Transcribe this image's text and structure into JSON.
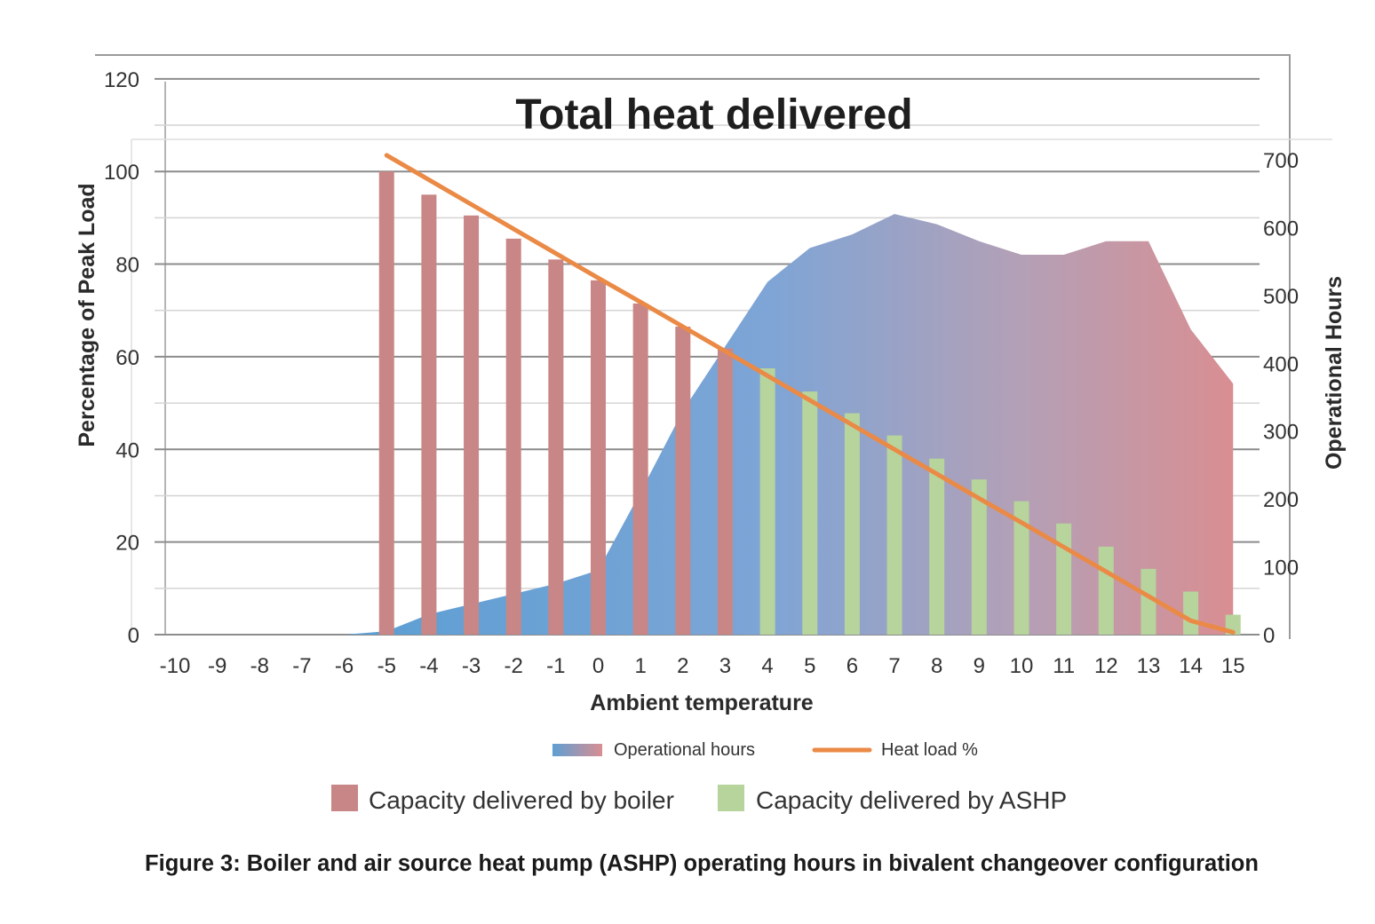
{
  "chart_data": {
    "type": "bar",
    "title": "Total heat delivered",
    "xlabel": "Ambient temperature",
    "ylabel": "Percentage of Peak Load",
    "y2label": "Operational Hours",
    "categories": [
      "-10",
      "-9",
      "-8",
      "-7",
      "-6",
      "-5",
      "-4",
      "-3",
      "-2",
      "-1",
      "0",
      "1",
      "2",
      "3",
      "4",
      "5",
      "6",
      "7",
      "8",
      "9",
      "10",
      "11",
      "12",
      "13",
      "14",
      "15"
    ],
    "ylim": [
      0,
      120
    ],
    "yticks": [
      0,
      20,
      40,
      60,
      80,
      100,
      120
    ],
    "y2lim": [
      0,
      700
    ],
    "y2ticks": [
      0,
      100,
      200,
      300,
      400,
      500,
      600,
      700
    ],
    "grid": true,
    "series": [
      {
        "name": "Capacity delivered by boiler",
        "type": "bar",
        "axis": "left",
        "color": "#c98686",
        "values": [
          null,
          null,
          null,
          null,
          null,
          100,
          95,
          90.5,
          85.5,
          81,
          76.5,
          71.5,
          66.5,
          61.8,
          null,
          null,
          null,
          null,
          null,
          null,
          null,
          null,
          null,
          null,
          null,
          null
        ]
      },
      {
        "name": "Capacity delivered by ASHP",
        "type": "bar",
        "axis": "left",
        "color": "#b7d49c",
        "values": [
          null,
          null,
          null,
          null,
          null,
          null,
          null,
          null,
          null,
          null,
          null,
          null,
          null,
          null,
          57.5,
          52.5,
          47.8,
          43,
          38,
          33.5,
          28.8,
          24,
          19,
          14.2,
          9.3,
          4.3
        ]
      },
      {
        "name": "Heat load %",
        "type": "line",
        "axis": "left",
        "color": "#ea8a46",
        "values": [
          null,
          null,
          null,
          null,
          null,
          103.5,
          98.2,
          92.9,
          87.6,
          82.3,
          77,
          71.8,
          66.5,
          61.2,
          55.9,
          50.6,
          45.3,
          40,
          34.7,
          29.4,
          24.2,
          18.9,
          13.6,
          8.3,
          3,
          0.5
        ]
      },
      {
        "name": "Operational hours",
        "type": "area",
        "axis": "right",
        "color_start": "#5e9fd3",
        "color_end": "#d98e92",
        "values": [
          0,
          0,
          0,
          0,
          0,
          5,
          30,
          45,
          60,
          75,
          95,
          210,
          330,
          425,
          520,
          570,
          590,
          620,
          605,
          580,
          560,
          560,
          580,
          580,
          450,
          370
        ]
      }
    ],
    "legend": {
      "placement": "bottom",
      "items": [
        {
          "label": "Operational hours",
          "kind": "area-gradient"
        },
        {
          "label": "Heat load %",
          "kind": "line"
        },
        {
          "label": "Capacity delivered by boiler",
          "kind": "box"
        },
        {
          "label": "Capacity delivered by ASHP",
          "kind": "box"
        }
      ]
    },
    "caption": "Figure 3: Boiler and air source heat pump (ASHP) operating hours in bivalent changeover configuration"
  }
}
